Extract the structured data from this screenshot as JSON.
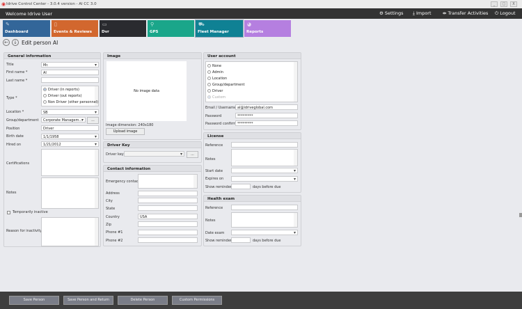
{
  "window": {
    "title": "Idrive Control Center - 3.0.4 version - AI CC 3.0",
    "min": "_",
    "max": "□",
    "close": "X"
  },
  "header": {
    "welcome": "Welcome Idrive User",
    "settings": "Settings",
    "import": "Import",
    "transfer": "Transfer Activities",
    "logout": "Logout"
  },
  "tiles": [
    {
      "label": "Dashboard",
      "color": "#336699"
    },
    {
      "label": "Events & Reviews",
      "color": "#d2672e"
    },
    {
      "label": "Dvr",
      "color": "#2a2b2f"
    },
    {
      "label": "GPS",
      "color": "#1aa68a"
    },
    {
      "label": "Fleet Manager",
      "color": "#0f8194"
    },
    {
      "label": "Reports",
      "color": "#b57fe0"
    }
  ],
  "page": {
    "title": "Edit person AI"
  },
  "general": {
    "title": "General information",
    "title_label": "Title",
    "title_value": "Mr.",
    "first_label": "First name *",
    "first_value": "AI",
    "last_label": "Last name *",
    "last_value": "",
    "type_label": "Type *",
    "type_options": [
      "Driver (in reports)",
      "Driver (out reports)",
      "Non Driver (other personnel)"
    ],
    "location_label": "Location *",
    "location_value": "SB",
    "group_label": "Group/department",
    "group_value": "Corporate Managem...",
    "ellipsis": "...",
    "position_label": "Position",
    "position_value": "Driver",
    "birth_label": "Birth date",
    "birth_value": "1/1/1958",
    "hired_label": "Hired on",
    "hired_value": "1/21/2012",
    "cert_label": "Certifications",
    "notes_label": "Notes",
    "inactive_label": "Temporarily inactive",
    "reason_label": "Reason for inactivity"
  },
  "image": {
    "title": "Image",
    "placeholder": "No image data",
    "dimension": "Image dimension:  240x180",
    "upload": "Upload image"
  },
  "driver_key": {
    "title": "Driver Key",
    "label": "Driver key",
    "ellipsis": "..."
  },
  "contact": {
    "title": "Contact information",
    "emergency": "Emergency contact",
    "address": "Address",
    "city": "City",
    "state": "State",
    "country": "Country",
    "country_value": "USA",
    "zip": "Zip",
    "phone1": "Phone #1",
    "phone2": "Phone #2"
  },
  "account": {
    "title": "User account",
    "roles": [
      "None",
      "Admin",
      "Location",
      "Group/department",
      "Driver",
      "Custom"
    ],
    "email_label": "Email / Username",
    "email_value": "al@idriveglobal.com",
    "password_label": "Password",
    "password_value": "*********",
    "confirm_label": "Password confirm",
    "confirm_value": "*********"
  },
  "license": {
    "title": "License",
    "reference": "Reference",
    "notes": "Notes",
    "start": "Start date",
    "expires": "Expires on",
    "reminder": "Show reminder",
    "days": "days before due"
  },
  "health": {
    "title": "Health exam",
    "reference": "Reference",
    "notes": "Notes",
    "date": "Date exam",
    "reminder": "Show reminder",
    "days": "days before due"
  },
  "footer": {
    "save": "Save Person",
    "save_return": "Save Person and Return",
    "delete": "Delete Person",
    "permissions": "Custom Permissions"
  }
}
